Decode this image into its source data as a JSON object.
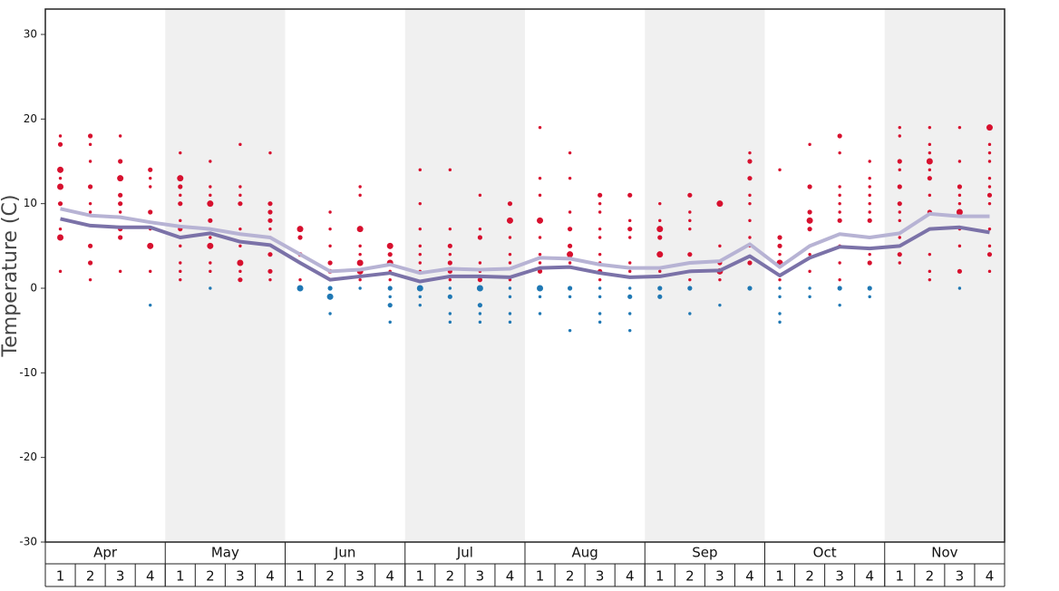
{
  "chart_data": {
    "type": "line",
    "y_label": "Temperature (C)",
    "months": [
      "Apr",
      "May",
      "Jun",
      "Jul",
      "Aug",
      "Sep",
      "Oct",
      "Nov"
    ],
    "categories": [
      "1",
      "2",
      "3",
      "4",
      "1",
      "2",
      "3",
      "4",
      "1",
      "2",
      "3",
      "4",
      "1",
      "2",
      "3",
      "4",
      "1",
      "2",
      "3",
      "4",
      "1",
      "2",
      "3",
      "4",
      "1",
      "2",
      "3",
      "4",
      "1",
      "2",
      "3",
      "4"
    ],
    "ylim": [
      -30,
      33
    ],
    "yticks": [
      30,
      20,
      10,
      0,
      -10,
      -20,
      -30
    ],
    "shade_alternate_months": true,
    "series": [
      {
        "color": "#b7b3d4",
        "values": [
          9.4,
          8.6,
          8.4,
          7.8,
          7.3,
          7.0,
          6.4,
          6.0,
          4.0,
          2.0,
          2.2,
          2.8,
          1.8,
          2.3,
          2.2,
          2.3,
          3.6,
          3.5,
          2.8,
          2.4,
          2.4,
          3.0,
          3.2,
          5.2,
          2.5,
          5.0,
          6.4,
          6.0,
          6.5,
          8.8,
          8.5,
          8.5
        ]
      },
      {
        "color": "#7b72a8",
        "values": [
          8.2,
          7.4,
          7.2,
          7.2,
          6.0,
          6.5,
          5.5,
          5.1,
          3.0,
          1.0,
          1.4,
          1.8,
          0.8,
          1.4,
          1.4,
          1.3,
          2.4,
          2.5,
          1.8,
          1.3,
          1.4,
          2.0,
          2.1,
          3.8,
          1.5,
          3.6,
          4.9,
          4.7,
          5.0,
          7.0,
          7.2,
          6.6
        ]
      }
    ],
    "points": [
      {
        "color": "#d7102e",
        "values": [
          [
            18,
            17,
            14,
            13,
            12,
            10,
            7,
            6,
            2
          ],
          [
            18,
            17,
            15,
            12,
            10,
            9,
            5,
            3,
            1
          ],
          [
            18,
            15,
            13,
            11,
            10,
            9,
            7,
            6,
            2
          ],
          [
            14,
            13,
            12,
            9,
            7,
            5,
            2
          ],
          [
            16,
            13,
            12,
            11,
            10,
            8,
            7,
            5,
            3,
            2,
            1
          ],
          [
            15,
            12,
            11,
            10,
            8,
            6,
            5,
            3,
            2
          ],
          [
            17,
            12,
            11,
            10,
            7,
            5,
            3,
            2,
            1
          ],
          [
            16,
            10,
            9,
            8,
            7,
            6,
            4,
            2,
            1
          ],
          [
            7,
            6,
            4,
            1
          ],
          [
            9,
            7,
            5,
            3,
            2,
            1
          ],
          [
            12,
            11,
            7,
            5,
            4,
            3,
            2,
            1
          ],
          [
            5,
            4,
            3,
            2,
            1
          ],
          [
            14,
            10,
            7,
            5,
            4,
            3,
            2
          ],
          [
            14,
            7,
            5,
            4,
            3,
            2,
            1
          ],
          [
            11,
            7,
            6,
            3,
            2,
            1
          ],
          [
            10,
            8,
            6,
            4,
            3,
            1
          ],
          [
            19,
            13,
            11,
            8,
            6,
            4,
            3,
            2
          ],
          [
            16,
            13,
            9,
            7,
            5,
            4,
            3
          ],
          [
            11,
            10,
            9,
            7,
            6,
            4,
            3,
            2,
            1
          ],
          [
            11,
            8,
            7,
            6,
            3,
            2
          ],
          [
            10,
            8,
            7,
            6,
            4,
            2
          ],
          [
            11,
            9,
            8,
            7,
            4,
            3,
            2,
            1
          ],
          [
            10,
            5,
            3,
            2,
            1
          ],
          [
            16,
            15,
            13,
            11,
            10,
            8,
            6,
            5,
            3
          ],
          [
            14,
            6,
            5,
            4,
            3,
            1
          ],
          [
            17,
            12,
            9,
            8,
            7,
            5,
            4,
            2
          ],
          [
            18,
            16,
            12,
            11,
            10,
            9,
            8,
            5,
            3,
            1
          ],
          [
            15,
            13,
            12,
            11,
            10,
            9,
            8,
            4,
            3
          ],
          [
            19,
            18,
            15,
            14,
            12,
            10,
            9,
            8,
            6,
            4,
            3
          ],
          [
            19,
            17,
            16,
            15,
            14,
            13,
            11,
            9,
            4,
            2,
            1
          ],
          [
            19,
            15,
            12,
            11,
            10,
            9,
            7,
            5,
            2
          ],
          [
            19,
            17,
            16,
            15,
            13,
            12,
            11,
            10,
            7,
            5,
            4,
            2
          ]
        ],
        "sizes": [
          [
            1,
            2,
            3,
            1,
            3,
            2,
            1,
            3,
            1
          ],
          [
            2,
            1,
            1,
            2,
            1,
            1,
            2,
            2,
            1
          ],
          [
            1,
            2,
            3,
            2,
            2,
            1,
            2,
            2,
            1
          ],
          [
            2,
            1,
            1,
            2,
            1,
            3,
            1
          ],
          [
            1,
            3,
            2,
            1,
            2,
            1,
            2,
            1,
            1,
            1,
            1
          ],
          [
            1,
            1,
            1,
            3,
            2,
            1,
            3,
            1,
            1
          ],
          [
            1,
            1,
            1,
            2,
            1,
            1,
            3,
            1,
            2
          ],
          [
            1,
            2,
            2,
            2,
            1,
            1,
            2,
            2,
            1
          ],
          [
            3,
            2,
            2,
            1
          ],
          [
            1,
            1,
            1,
            2,
            2,
            1
          ],
          [
            1,
            1,
            3,
            1,
            1,
            3,
            3,
            1
          ],
          [
            3,
            2,
            3,
            1,
            1
          ],
          [
            1,
            1,
            1,
            1,
            1,
            1,
            1
          ],
          [
            1,
            1,
            2,
            1,
            2,
            2,
            1
          ],
          [
            1,
            1,
            2,
            1,
            1,
            2
          ],
          [
            2,
            3,
            1,
            1,
            1,
            1
          ],
          [
            1,
            1,
            1,
            3,
            1,
            1,
            1,
            2
          ],
          [
            1,
            1,
            1,
            2,
            2,
            3,
            1
          ],
          [
            2,
            1,
            1,
            1,
            1,
            1,
            1,
            2,
            1
          ],
          [
            2,
            1,
            2,
            1,
            1,
            1
          ],
          [
            1,
            1,
            3,
            2,
            3,
            1
          ],
          [
            2,
            1,
            1,
            1,
            2,
            1,
            1,
            1
          ],
          [
            3,
            1,
            2,
            3,
            1
          ],
          [
            1,
            2,
            2,
            1,
            1,
            1,
            1,
            1,
            2
          ],
          [
            1,
            2,
            2,
            1,
            3,
            1
          ],
          [
            1,
            2,
            2,
            3,
            2,
            1,
            1,
            1
          ],
          [
            2,
            1,
            1,
            1,
            1,
            1,
            2,
            1,
            1,
            1
          ],
          [
            1,
            1,
            1,
            1,
            1,
            1,
            2,
            1,
            2
          ],
          [
            1,
            1,
            2,
            1,
            2,
            2,
            1,
            1,
            1,
            2,
            1
          ],
          [
            1,
            1,
            1,
            3,
            1,
            2,
            1,
            2,
            1,
            1,
            1
          ],
          [
            1,
            1,
            2,
            1,
            1,
            3,
            1,
            1,
            2
          ],
          [
            3,
            1,
            1,
            1,
            1,
            1,
            2,
            1,
            1,
            1,
            2,
            1
          ]
        ]
      },
      {
        "color": "#1f78b4",
        "values": [
          [],
          [],
          [],
          [
            -2
          ],
          [],
          [
            0
          ],
          [],
          [],
          [
            0
          ],
          [
            0,
            -1,
            -3
          ],
          [
            0
          ],
          [
            0,
            -1,
            -2,
            -4
          ],
          [
            0,
            -1,
            -2
          ],
          [
            0,
            -1,
            -3,
            -4
          ],
          [
            0,
            -2,
            -3,
            -4
          ],
          [
            0,
            -1,
            -3,
            -4
          ],
          [
            0,
            -1,
            -3
          ],
          [
            0,
            -1,
            -5
          ],
          [
            0,
            -1,
            -3,
            -4
          ],
          [
            0,
            -1,
            -3,
            -5
          ],
          [
            0,
            -1
          ],
          [
            0,
            -3
          ],
          [
            -2
          ],
          [
            0
          ],
          [
            0,
            -1,
            -3,
            -4
          ],
          [
            0,
            -1
          ],
          [
            0,
            -2
          ],
          [
            0,
            -1
          ],
          [],
          [],
          [
            0
          ],
          []
        ],
        "sizes": [
          [],
          [],
          [],
          [
            1
          ],
          [],
          [
            1
          ],
          [],
          [],
          [
            3
          ],
          [
            2,
            3,
            1
          ],
          [
            1
          ],
          [
            2,
            1,
            2,
            1
          ],
          [
            3,
            1,
            1
          ],
          [
            1,
            2,
            1,
            1
          ],
          [
            3,
            2,
            1,
            1
          ],
          [
            1,
            1,
            1,
            1
          ],
          [
            3,
            1,
            1
          ],
          [
            2,
            1,
            1
          ],
          [
            1,
            1,
            1,
            1
          ],
          [
            1,
            2,
            1,
            1
          ],
          [
            2,
            2
          ],
          [
            2,
            1
          ],
          [
            1
          ],
          [
            2
          ],
          [
            1,
            1,
            1,
            1
          ],
          [
            1,
            1
          ],
          [
            2,
            1
          ],
          [
            2,
            1
          ],
          [],
          [],
          [
            1
          ],
          []
        ]
      }
    ]
  }
}
